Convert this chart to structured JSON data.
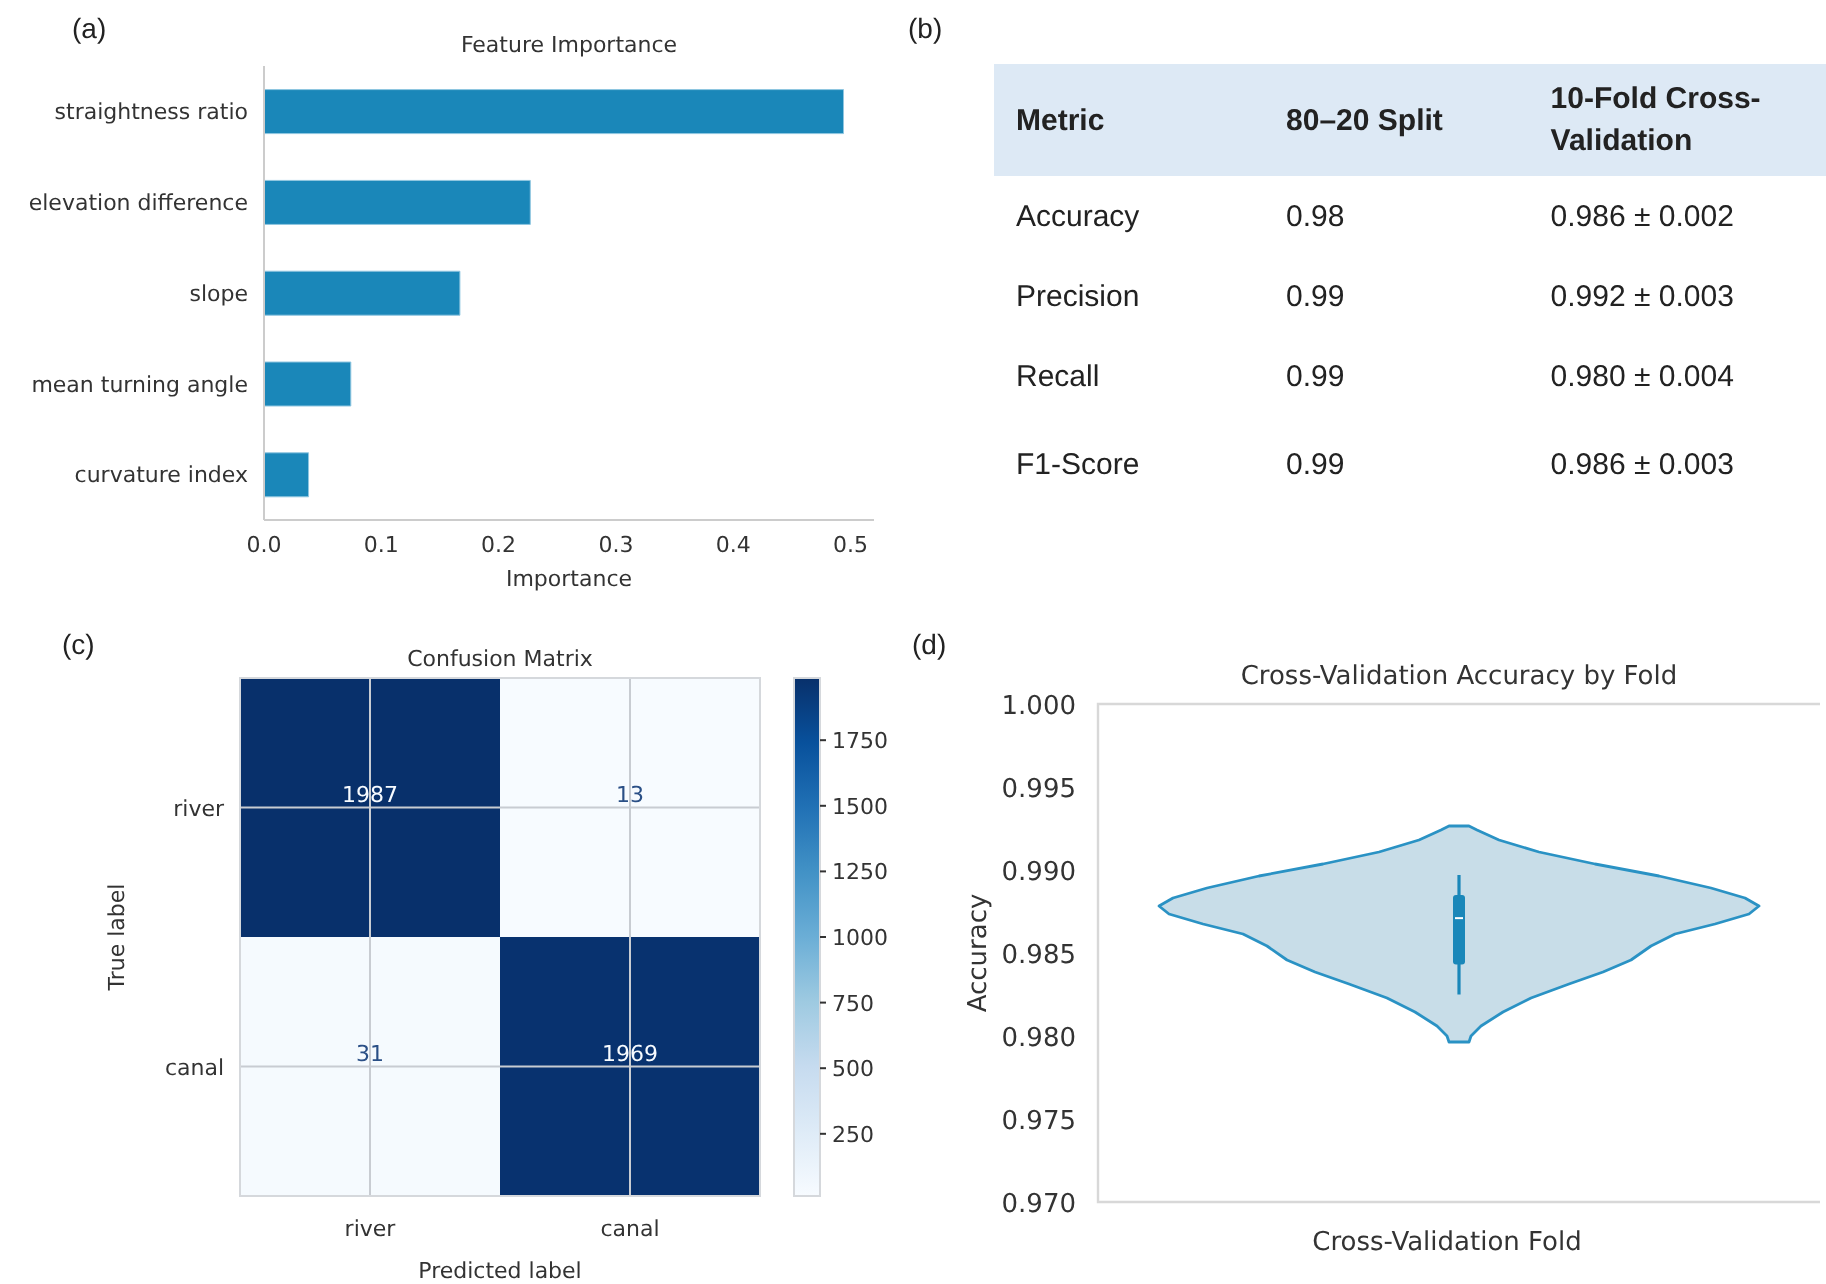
{
  "chart_data": [
    {
      "type": "bar",
      "orientation": "horizontal",
      "title": "Feature Importance",
      "xlabel": "Importance",
      "annotations": [
        "(a)"
      ],
      "categories": [
        "straightness ratio",
        "elevation difference",
        "slope",
        "mean turning angle",
        "curvature index"
      ],
      "values": [
        0.494,
        0.227,
        0.167,
        0.074,
        0.038
      ],
      "color": "#1a87b9",
      "xlim": [
        0,
        0.52
      ],
      "xticks": [
        {
          "value": 0,
          "label": "0.0"
        },
        {
          "value": 0.1,
          "label": "0.1"
        },
        {
          "value": 0.2,
          "label": "0.2"
        },
        {
          "value": 0.3,
          "label": "0.3"
        },
        {
          "value": 0.4,
          "label": "0.4"
        },
        {
          "value": 0.5,
          "label": "0.5"
        }
      ]
    },
    {
      "type": "other",
      "annotations": [
        "(b)"
      ],
      "categories": [
        "Metric",
        "80–20 Split",
        "10-Fold Cross-Validation"
      ],
      "cell_labels": [
        [
          "Accuracy",
          "0.98",
          "0.986 ± 0.002"
        ],
        [
          "Precision",
          "0.99",
          "0.992 ± 0.003"
        ],
        [
          "Recall",
          "0.99",
          "0.980 ± 0.004"
        ],
        [
          "F1-Score",
          "0.99",
          "0.986 ± 0.003"
        ]
      ]
    },
    {
      "type": "heatmap",
      "title": "Confusion Matrix",
      "xlabel": "Predicted label",
      "ylabel": "True label",
      "annotations": [
        "(c)"
      ],
      "categories": [
        "river",
        "canal"
      ],
      "y_categories": [
        "river",
        "canal"
      ],
      "cells": [
        [
          1987,
          13
        ],
        [
          31,
          1969
        ]
      ],
      "data_labels": true,
      "grid": true,
      "clim": [
        13,
        1987
      ],
      "cticks": [
        250,
        500,
        750,
        1000,
        1250,
        1500,
        1750
      ]
    },
    {
      "type": "box",
      "title": "Cross-Validation Accuracy by Fold",
      "xlabel": "Cross-Validation Fold",
      "ylabel": "Accuracy",
      "annotations": [
        "(d)"
      ],
      "categories": [
        null
      ],
      "color": "#1a87b9",
      "boxes": [
        {
          "low": 0.9825,
          "q1": 0.9843,
          "median": 0.9871,
          "q3": 0.9885,
          "high": 0.9897
        }
      ],
      "ylim": [
        0.97,
        1.0
      ],
      "yticks": [
        {
          "value": 0.97,
          "label": "0.970"
        },
        {
          "value": 0.975,
          "label": "0.975"
        },
        {
          "value": 0.98,
          "label": "0.980"
        },
        {
          "value": 0.985,
          "label": "0.985"
        },
        {
          "value": 0.99,
          "label": "0.990"
        },
        {
          "value": 0.995,
          "label": "0.995"
        },
        {
          "value": 1.0,
          "label": "1.000"
        }
      ]
    }
  ]
}
